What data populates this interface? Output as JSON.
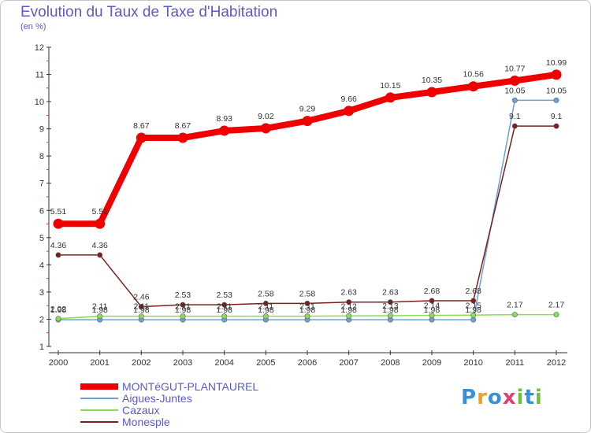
{
  "title": "Evolution du Taux de Taxe d'Habitation",
  "subtitle": "(en %)",
  "logo": "Proxiti",
  "chart_data": {
    "type": "line",
    "x": [
      2000,
      2001,
      2002,
      2003,
      2004,
      2005,
      2006,
      2007,
      2008,
      2009,
      2010,
      2011,
      2012
    ],
    "ylim": [
      1,
      12
    ],
    "yticks": [
      1,
      2,
      3,
      4,
      5,
      6,
      7,
      8,
      9,
      10,
      11,
      12
    ],
    "grid": false,
    "legend": "bottom-left",
    "series": [
      {
        "name": "MONTéGUT-PLANTAUREL",
        "color": "#ee0000",
        "values": [
          5.51,
          5.51,
          8.67,
          8.67,
          8.93,
          9.02,
          9.29,
          9.66,
          10.15,
          10.35,
          10.56,
          10.77,
          10.99
        ],
        "labels": [
          "5.51",
          "5.51",
          "8.67",
          "8.67",
          "8.93",
          "9.02",
          "9.29",
          "9.66",
          "10.15",
          "10.35",
          "10.56",
          "10.77",
          "10.99"
        ]
      },
      {
        "name": "Aigues-Juntes",
        "color": "#6fa0d0",
        "values": [
          1.98,
          1.98,
          1.98,
          1.98,
          1.98,
          1.98,
          1.98,
          1.98,
          1.98,
          1.98,
          1.98,
          10.05,
          10.05
        ],
        "labels": [
          "1.98",
          "1.98",
          "1.98",
          "1.98",
          "1.98",
          "1.98",
          "1.98",
          "1.98",
          "1.98",
          "1.98",
          "1.98",
          "10.05",
          "10.05"
        ]
      },
      {
        "name": "Cazaux",
        "color": "#88dd55",
        "values": [
          2.02,
          2.11,
          2.11,
          2.11,
          2.11,
          2.11,
          2.11,
          2.12,
          2.13,
          2.14,
          2.15,
          2.17,
          2.17
        ],
        "labels": [
          "2.02",
          "2.11",
          "2.11",
          "2.11",
          "2.11",
          "2.11",
          "2.11",
          "2.12",
          "2.13",
          "2.14",
          "2.15",
          "2.17",
          "2.17"
        ]
      },
      {
        "name": "Monesple",
        "color": "#7a2020",
        "values": [
          4.36,
          4.36,
          2.46,
          2.53,
          2.53,
          2.58,
          2.58,
          2.63,
          2.63,
          2.68,
          2.68,
          9.1,
          9.1
        ],
        "labels": [
          "4.36",
          "4.36",
          "2.46",
          "2.53",
          "2.53",
          "2.58",
          "2.58",
          "2.63",
          "2.63",
          "2.68",
          "2.68",
          "9.1",
          "9.1"
        ]
      }
    ]
  }
}
